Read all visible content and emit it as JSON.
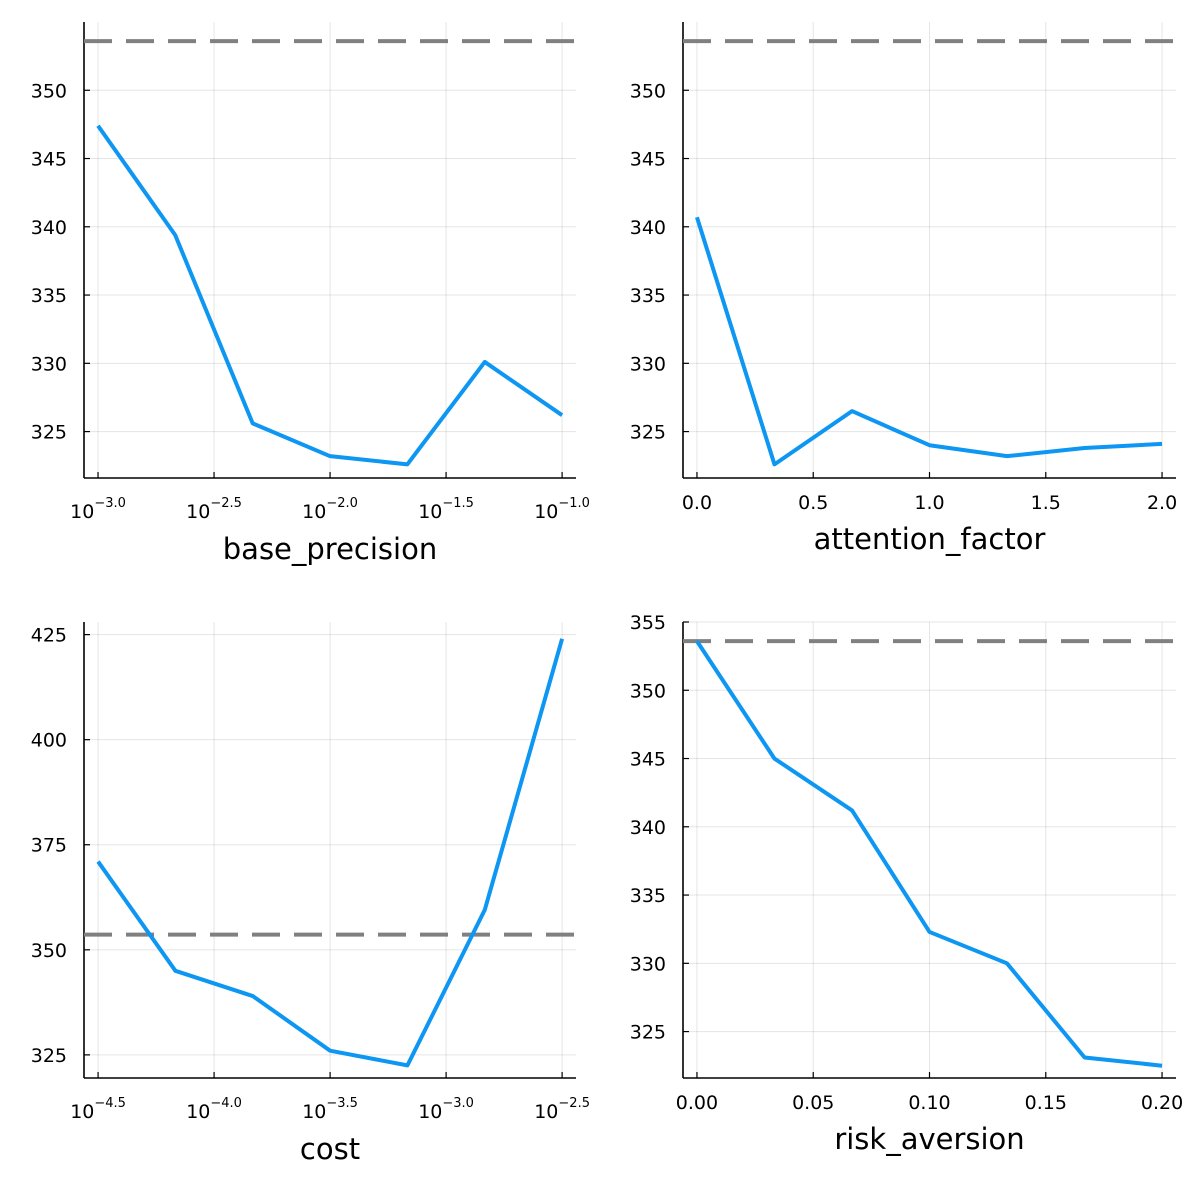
{
  "figure": {
    "background": "#ffffff"
  },
  "colors": {
    "series": "#0d96f2",
    "reference": "#808080"
  },
  "chart_data": [
    {
      "type": "line",
      "xlabel": "base_precision",
      "xscale": "log10",
      "x": [
        0.001,
        0.00215,
        0.00464,
        0.01,
        0.02154,
        0.04642,
        0.1
      ],
      "series": [
        {
          "values": [
            347.4,
            339.4,
            325.6,
            323.2,
            322.6,
            330.1,
            326.2
          ]
        }
      ],
      "reference_line": 353.6,
      "xlim": [
        0.00087,
        0.1148
      ],
      "ylim": [
        321.6,
        355.0
      ],
      "xticks": [
        {
          "base": "10",
          "exp": "−3.0",
          "value": 0.001
        },
        {
          "base": "10",
          "exp": "−2.5",
          "value": 0.003162
        },
        {
          "base": "10",
          "exp": "−2.0",
          "value": 0.01
        },
        {
          "base": "10",
          "exp": "−1.5",
          "value": 0.031623
        },
        {
          "base": "10",
          "exp": "−1.0",
          "value": 0.1
        }
      ],
      "yticks": [
        325,
        330,
        335,
        340,
        345,
        350
      ],
      "grid": true,
      "legend": "none"
    },
    {
      "type": "line",
      "xlabel": "attention_factor",
      "xscale": "linear",
      "x": [
        0.0,
        0.3333,
        0.6667,
        1.0,
        1.3333,
        1.6667,
        2.0
      ],
      "series": [
        {
          "values": [
            340.7,
            322.6,
            326.5,
            324.0,
            323.2,
            323.8,
            324.1
          ]
        }
      ],
      "reference_line": 353.6,
      "xlim": [
        -0.06,
        2.06
      ],
      "ylim": [
        321.6,
        355.0
      ],
      "xticks": [
        {
          "label": "0.0",
          "value": 0.0
        },
        {
          "label": "0.5",
          "value": 0.5
        },
        {
          "label": "1.0",
          "value": 1.0
        },
        {
          "label": "1.5",
          "value": 1.5
        },
        {
          "label": "2.0",
          "value": 2.0
        }
      ],
      "yticks": [
        325,
        330,
        335,
        340,
        345,
        350
      ],
      "grid": true,
      "legend": "none"
    },
    {
      "type": "line",
      "xlabel": "cost",
      "xscale": "log10",
      "x": [
        3.1623e-05,
        6.8129e-05,
        0.00014678,
        0.00031623,
        0.00068129,
        0.0014678,
        0.0031623
      ],
      "series": [
        {
          "values": [
            371.0,
            345.0,
            339.0,
            326.0,
            322.5,
            359.5,
            424.0
          ]
        }
      ],
      "reference_line": 353.6,
      "xlim": [
        2.75e-05,
        0.00363
      ],
      "ylim": [
        319.5,
        428.0
      ],
      "xticks": [
        {
          "base": "10",
          "exp": "−4.5",
          "value": 3.1623e-05
        },
        {
          "base": "10",
          "exp": "−4.0",
          "value": 0.0001
        },
        {
          "base": "10",
          "exp": "−3.5",
          "value": 0.00031623
        },
        {
          "base": "10",
          "exp": "−3.0",
          "value": 0.001
        },
        {
          "base": "10",
          "exp": "−2.5",
          "value": 0.0031623
        }
      ],
      "yticks": [
        325,
        350,
        375,
        400,
        425
      ],
      "grid": true,
      "legend": "none"
    },
    {
      "type": "line",
      "xlabel": "risk_aversion",
      "xscale": "linear",
      "x": [
        0.0,
        0.0333,
        0.0667,
        0.1,
        0.1333,
        0.1667,
        0.2
      ],
      "series": [
        {
          "values": [
            353.6,
            345.0,
            341.2,
            332.3,
            330.0,
            323.1,
            322.5
          ]
        }
      ],
      "reference_line": 353.6,
      "xlim": [
        -0.006,
        0.206
      ],
      "ylim": [
        321.6,
        355.0
      ],
      "xticks": [
        {
          "label": "0.00",
          "value": 0.0
        },
        {
          "label": "0.05",
          "value": 0.05
        },
        {
          "label": "0.10",
          "value": 0.1
        },
        {
          "label": "0.15",
          "value": 0.15
        },
        {
          "label": "0.20",
          "value": 0.2
        }
      ],
      "yticks": [
        325,
        330,
        335,
        340,
        345,
        350,
        355
      ],
      "grid": true,
      "legend": "none"
    }
  ]
}
